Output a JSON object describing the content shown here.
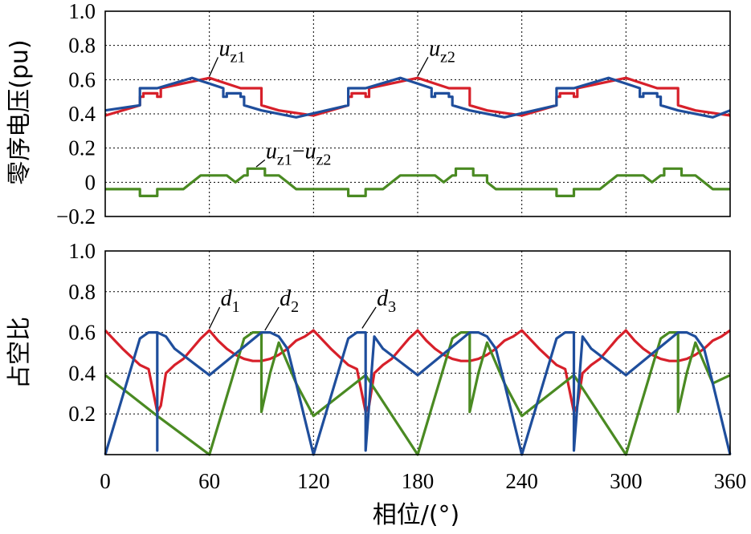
{
  "chart_data": [
    {
      "type": "line",
      "panel": "top",
      "ylabel": "零序电压(pu)",
      "xlabel": "",
      "xlim": [
        0,
        360
      ],
      "ylim": [
        -0.2,
        1.0
      ],
      "xticks": [
        0,
        60,
        120,
        180,
        240,
        300,
        360
      ],
      "yticks": [
        1.0,
        0.8,
        0.6,
        0.4,
        0.2,
        0,
        -0.2
      ],
      "ytick_labels": [
        "1.0",
        "0.8",
        "0.6",
        "0.4",
        "0.2",
        "0",
        "−0.2"
      ],
      "grid": true,
      "series": [
        {
          "name": "uz1",
          "color": "#d7202a",
          "x": [
            0,
            20,
            20,
            22,
            22,
            30,
            30,
            32,
            32,
            60,
            78,
            78,
            90,
            90,
            100,
            120,
            140,
            140,
            142,
            142,
            150,
            150,
            152,
            152,
            180,
            198,
            198,
            210,
            210,
            220,
            240,
            260,
            260,
            262,
            262,
            270,
            270,
            272,
            272,
            300,
            318,
            318,
            330,
            330,
            340,
            360
          ],
          "y": [
            0.39,
            0.45,
            0.5,
            0.5,
            0.52,
            0.52,
            0.5,
            0.5,
            0.55,
            0.61,
            0.55,
            0.55,
            0.55,
            0.45,
            0.42,
            0.39,
            0.45,
            0.5,
            0.5,
            0.52,
            0.52,
            0.5,
            0.5,
            0.55,
            0.61,
            0.55,
            0.55,
            0.55,
            0.45,
            0.42,
            0.39,
            0.45,
            0.5,
            0.5,
            0.52,
            0.52,
            0.5,
            0.5,
            0.55,
            0.61,
            0.55,
            0.55,
            0.55,
            0.45,
            0.42,
            0.39
          ]
        },
        {
          "name": "uz2",
          "color": "#1f4e9c",
          "x": [
            0,
            20,
            20,
            30,
            30,
            50,
            68,
            68,
            70,
            70,
            78,
            78,
            80,
            80,
            90,
            110,
            140,
            140,
            150,
            150,
            170,
            188,
            188,
            190,
            190,
            198,
            198,
            200,
            200,
            210,
            230,
            260,
            260,
            270,
            270,
            290,
            308,
            308,
            310,
            310,
            318,
            318,
            320,
            320,
            330,
            350,
            360
          ],
          "y": [
            0.42,
            0.45,
            0.55,
            0.55,
            0.55,
            0.61,
            0.55,
            0.5,
            0.5,
            0.52,
            0.52,
            0.5,
            0.5,
            0.45,
            0.42,
            0.38,
            0.45,
            0.55,
            0.55,
            0.55,
            0.61,
            0.55,
            0.5,
            0.5,
            0.52,
            0.52,
            0.5,
            0.5,
            0.45,
            0.42,
            0.38,
            0.45,
            0.55,
            0.55,
            0.55,
            0.61,
            0.55,
            0.5,
            0.5,
            0.52,
            0.52,
            0.5,
            0.5,
            0.45,
            0.42,
            0.38,
            0.42
          ]
        },
        {
          "name": "uz1−uz2",
          "color": "#4a8a22",
          "x": [
            0,
            5,
            10,
            15,
            20,
            20,
            22,
            22,
            28,
            30,
            30,
            35,
            40,
            45,
            50,
            55,
            60,
            65,
            70,
            75,
            80,
            82,
            82,
            90,
            90,
            92,
            92,
            98,
            100,
            100,
            105,
            110,
            115,
            120,
            125,
            130,
            135,
            140,
            140,
            142,
            142,
            148,
            150,
            150,
            155,
            160,
            165,
            170,
            175,
            180,
            185,
            190,
            195,
            200,
            202,
            202,
            210,
            210,
            212,
            212,
            218,
            220,
            220,
            225,
            230,
            235,
            240,
            245,
            250,
            255,
            260,
            260,
            262,
            262,
            268,
            270,
            270,
            275,
            280,
            285,
            290,
            295,
            300,
            305,
            310,
            315,
            320,
            322,
            322,
            330,
            330,
            332,
            332,
            338,
            340,
            340,
            345,
            350,
            355,
            360
          ],
          "y": [
            -0.04,
            -0.04,
            -0.04,
            -0.04,
            -0.04,
            -0.08,
            -0.08,
            -0.08,
            -0.08,
            -0.08,
            -0.04,
            -0.04,
            -0.04,
            -0.04,
            0.0,
            0.04,
            0.04,
            0.04,
            0.04,
            0.0,
            0.04,
            0.04,
            0.08,
            0.08,
            0.08,
            0.08,
            0.04,
            0.04,
            0.04,
            0.04,
            0.0,
            -0.04,
            -0.04,
            -0.04,
            -0.04,
            -0.04,
            -0.04,
            -0.04,
            -0.08,
            -0.08,
            -0.08,
            -0.08,
            -0.08,
            -0.04,
            -0.04,
            -0.04,
            0.0,
            0.04,
            0.04,
            0.04,
            0.04,
            0.04,
            0.0,
            0.04,
            0.04,
            0.08,
            0.08,
            0.08,
            0.08,
            0.04,
            0.04,
            0.04,
            0.0,
            -0.04,
            -0.04,
            -0.04,
            -0.04,
            -0.04,
            -0.04,
            -0.04,
            -0.04,
            -0.08,
            -0.08,
            -0.08,
            -0.08,
            -0.08,
            -0.04,
            -0.04,
            -0.04,
            -0.04,
            0.0,
            0.04,
            0.04,
            0.04,
            0.04,
            0.0,
            0.04,
            0.04,
            0.08,
            0.08,
            0.08,
            0.08,
            0.04,
            0.04,
            0.04,
            0.04,
            0.0,
            -0.04,
            -0.04,
            -0.04
          ]
        }
      ],
      "annotations": [
        {
          "base": "u",
          "sub": "z1",
          "x": 60,
          "y": 0.62,
          "label_x": 65,
          "label_y": 0.75
        },
        {
          "base": "u",
          "sub": "z2",
          "x": 180,
          "y": 0.62,
          "label_x": 186,
          "label_y": 0.75
        },
        {
          "base": "u",
          "sub": "z1",
          "mid": "−",
          "base2": "u",
          "sub2": "z2",
          "x": 87,
          "y": 0.09,
          "label_x": 92,
          "label_y": 0.15
        }
      ]
    },
    {
      "type": "line",
      "panel": "bottom",
      "ylabel": "占空比",
      "xlabel": "相位/(°)",
      "xlim": [
        0,
        360
      ],
      "ylim": [
        0,
        1.0
      ],
      "xticks": [
        0,
        60,
        120,
        180,
        240,
        300,
        360
      ],
      "xtick_labels": [
        "0",
        "60",
        "120",
        "180",
        "240",
        "300",
        "360"
      ],
      "yticks": [
        1.0,
        0.8,
        0.6,
        0.4,
        0.2
      ],
      "ytick_labels": [
        "1.0",
        "0.8",
        "0.6",
        "0.4",
        "0.2"
      ],
      "grid": true,
      "series": [
        {
          "name": "d1",
          "color": "#d7202a",
          "x": [
            0,
            10,
            20,
            25,
            30,
            30,
            32,
            35,
            40,
            45,
            50,
            55,
            60,
            65,
            70,
            75,
            80,
            85,
            90,
            95,
            100,
            105,
            110,
            115,
            120,
            130,
            140,
            145,
            150,
            150,
            152,
            155,
            160,
            165,
            170,
            175,
            180,
            185,
            190,
            195,
            200,
            205,
            210,
            215,
            220,
            225,
            230,
            235,
            240,
            250,
            260,
            265,
            270,
            270,
            272,
            275,
            280,
            285,
            290,
            295,
            300,
            305,
            310,
            315,
            320,
            325,
            330,
            335,
            340,
            345,
            350,
            355,
            360
          ],
          "y": [
            0.61,
            0.52,
            0.44,
            0.42,
            0.21,
            0.21,
            0.24,
            0.4,
            0.44,
            0.47,
            0.52,
            0.57,
            0.61,
            0.56,
            0.52,
            0.49,
            0.47,
            0.46,
            0.46,
            0.47,
            0.49,
            0.52,
            0.56,
            0.58,
            0.61,
            0.52,
            0.44,
            0.42,
            0.21,
            0.21,
            0.24,
            0.4,
            0.44,
            0.47,
            0.52,
            0.57,
            0.61,
            0.56,
            0.52,
            0.49,
            0.47,
            0.46,
            0.46,
            0.47,
            0.49,
            0.52,
            0.56,
            0.58,
            0.61,
            0.52,
            0.44,
            0.42,
            0.21,
            0.21,
            0.24,
            0.4,
            0.44,
            0.47,
            0.52,
            0.57,
            0.61,
            0.56,
            0.52,
            0.49,
            0.47,
            0.46,
            0.46,
            0.47,
            0.49,
            0.52,
            0.56,
            0.58,
            0.61
          ]
        },
        {
          "name": "d2",
          "color": "#4a8a22",
          "x": [
            0,
            30,
            60,
            80,
            85,
            89,
            90,
            90,
            95,
            100,
            110,
            120,
            150,
            180,
            200,
            205,
            209,
            210,
            210,
            215,
            220,
            230,
            240,
            270,
            300,
            320,
            325,
            329,
            330,
            330,
            335,
            340,
            350,
            360
          ],
          "y": [
            0.39,
            0.19,
            0.0,
            0.57,
            0.6,
            0.6,
            0.6,
            0.21,
            0.4,
            0.55,
            0.35,
            0.19,
            0.39,
            0.0,
            0.57,
            0.6,
            0.6,
            0.6,
            0.21,
            0.4,
            0.55,
            0.35,
            0.19,
            0.39,
            0.0,
            0.57,
            0.6,
            0.6,
            0.6,
            0.21,
            0.4,
            0.55,
            0.35,
            0.39
          ]
        },
        {
          "name": "d3",
          "color": "#1f4e9c",
          "x": [
            0,
            20,
            25,
            30,
            30,
            30,
            35,
            40,
            60,
            90,
            95,
            100,
            105,
            110,
            120,
            140,
            145,
            150,
            150,
            155,
            160,
            180,
            210,
            215,
            220,
            225,
            230,
            240,
            260,
            265,
            270,
            270,
            275,
            280,
            300,
            330,
            335,
            340,
            345,
            350,
            360
          ],
          "y": [
            0.0,
            0.57,
            0.6,
            0.6,
            0.02,
            0.6,
            0.58,
            0.52,
            0.39,
            0.6,
            0.6,
            0.58,
            0.52,
            0.35,
            0.0,
            0.57,
            0.6,
            0.6,
            0.02,
            0.58,
            0.52,
            0.39,
            0.6,
            0.6,
            0.58,
            0.52,
            0.35,
            0.0,
            0.57,
            0.6,
            0.6,
            0.02,
            0.58,
            0.52,
            0.39,
            0.6,
            0.6,
            0.58,
            0.52,
            0.35,
            0.0
          ]
        }
      ],
      "annotations": [
        {
          "base": "d",
          "sub": "1",
          "x": 60,
          "y": 0.62,
          "label_x": 66,
          "label_y": 0.74
        },
        {
          "base": "d",
          "sub": "2",
          "x": 92,
          "y": 0.61,
          "label_x": 100,
          "label_y": 0.74
        },
        {
          "base": "d",
          "sub": "3",
          "x": 148,
          "y": 0.62,
          "label_x": 156,
          "label_y": 0.74
        }
      ]
    }
  ]
}
